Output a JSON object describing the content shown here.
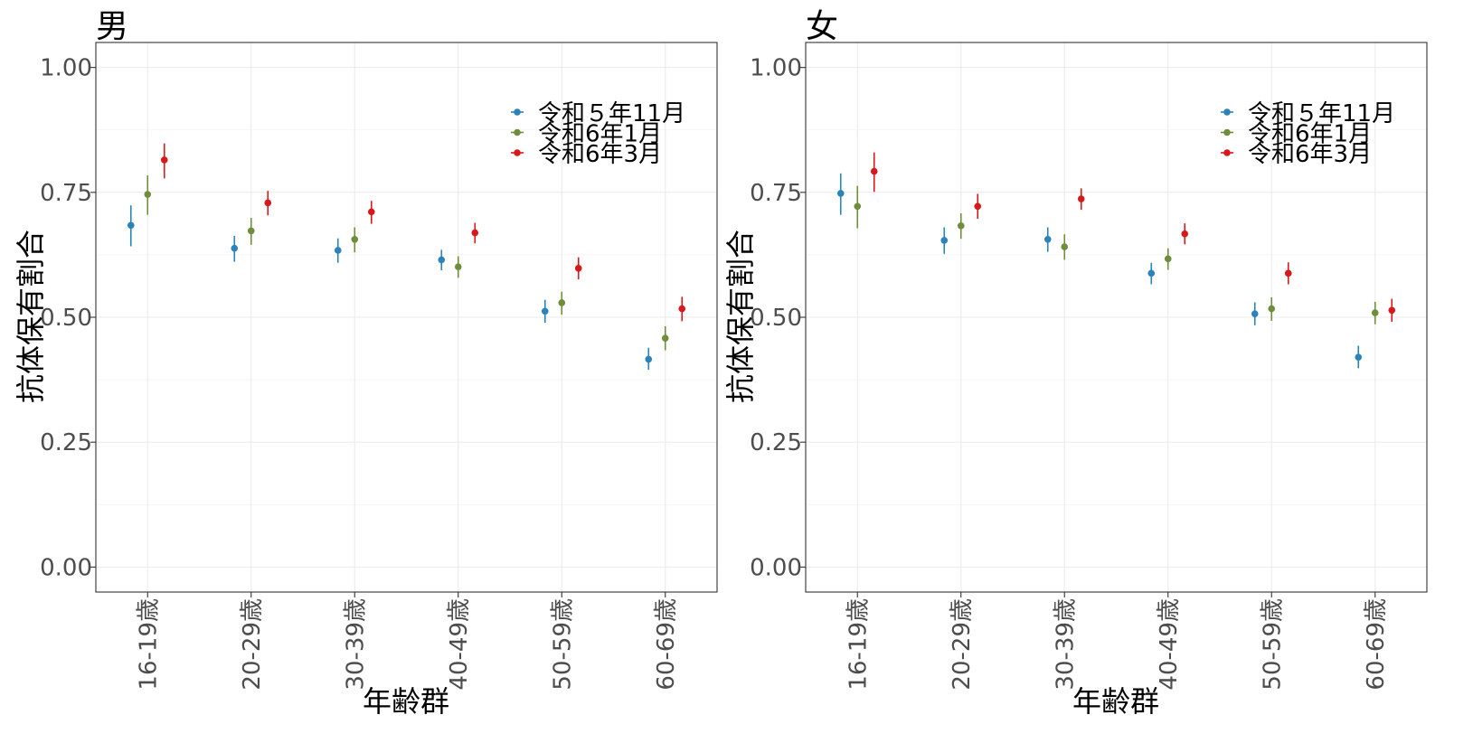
{
  "chart_data": [
    {
      "type": "scatter",
      "title": "男",
      "xlabel": "年齢群",
      "ylabel": "抗体保有割合",
      "categories": [
        "16-19歳",
        "20-29歳",
        "30-39歳",
        "40-49歳",
        "50-59歳",
        "60-69歳"
      ],
      "ylim": [
        -0.05,
        1.05
      ],
      "yticks": [
        "0.00",
        "0.25",
        "0.50",
        "0.75",
        "1.00"
      ],
      "grid": true,
      "legend_position": "top-right",
      "series": [
        {
          "name": "令和５年11月",
          "color": "#2b83ba",
          "values": [
            0.684,
            0.638,
            0.634,
            0.615,
            0.512,
            0.416
          ],
          "lower": [
            0.642,
            0.611,
            0.609,
            0.594,
            0.489,
            0.395
          ],
          "upper": [
            0.724,
            0.663,
            0.658,
            0.635,
            0.535,
            0.439
          ]
        },
        {
          "name": "令和6年1月",
          "color": "#6e8e3b",
          "values": [
            0.746,
            0.673,
            0.656,
            0.601,
            0.529,
            0.458
          ],
          "lower": [
            0.705,
            0.645,
            0.63,
            0.579,
            0.505,
            0.434
          ],
          "upper": [
            0.784,
            0.699,
            0.68,
            0.622,
            0.551,
            0.482
          ]
        },
        {
          "name": "令和6年3月",
          "color": "#d7191c",
          "values": [
            0.815,
            0.729,
            0.711,
            0.669,
            0.598,
            0.517
          ],
          "lower": [
            0.778,
            0.704,
            0.687,
            0.648,
            0.576,
            0.492
          ],
          "upper": [
            0.848,
            0.753,
            0.733,
            0.689,
            0.62,
            0.541
          ]
        }
      ]
    },
    {
      "type": "scatter",
      "title": "女",
      "xlabel": "年齢群",
      "ylabel": "抗体保有割合",
      "categories": [
        "16-19歳",
        "20-29歳",
        "30-39歳",
        "40-49歳",
        "50-59歳",
        "60-69歳"
      ],
      "ylim": [
        -0.05,
        1.05
      ],
      "yticks": [
        "0.00",
        "0.25",
        "0.50",
        "0.75",
        "1.00"
      ],
      "grid": true,
      "legend_position": "top-right",
      "series": [
        {
          "name": "令和５年11月",
          "color": "#2b83ba",
          "values": [
            0.748,
            0.654,
            0.656,
            0.588,
            0.507,
            0.42
          ],
          "lower": [
            0.705,
            0.627,
            0.631,
            0.566,
            0.484,
            0.398
          ],
          "upper": [
            0.788,
            0.68,
            0.68,
            0.609,
            0.53,
            0.443
          ]
        },
        {
          "name": "令和6年1月",
          "color": "#6e8e3b",
          "values": [
            0.722,
            0.683,
            0.641,
            0.617,
            0.517,
            0.509
          ],
          "lower": [
            0.678,
            0.657,
            0.615,
            0.595,
            0.493,
            0.486
          ],
          "upper": [
            0.763,
            0.708,
            0.666,
            0.638,
            0.54,
            0.531
          ]
        },
        {
          "name": "令和6年3月",
          "color": "#d7191c",
          "values": [
            0.792,
            0.722,
            0.737,
            0.667,
            0.588,
            0.514
          ],
          "lower": [
            0.751,
            0.697,
            0.715,
            0.646,
            0.566,
            0.491
          ],
          "upper": [
            0.83,
            0.747,
            0.758,
            0.688,
            0.61,
            0.537
          ]
        }
      ]
    }
  ]
}
